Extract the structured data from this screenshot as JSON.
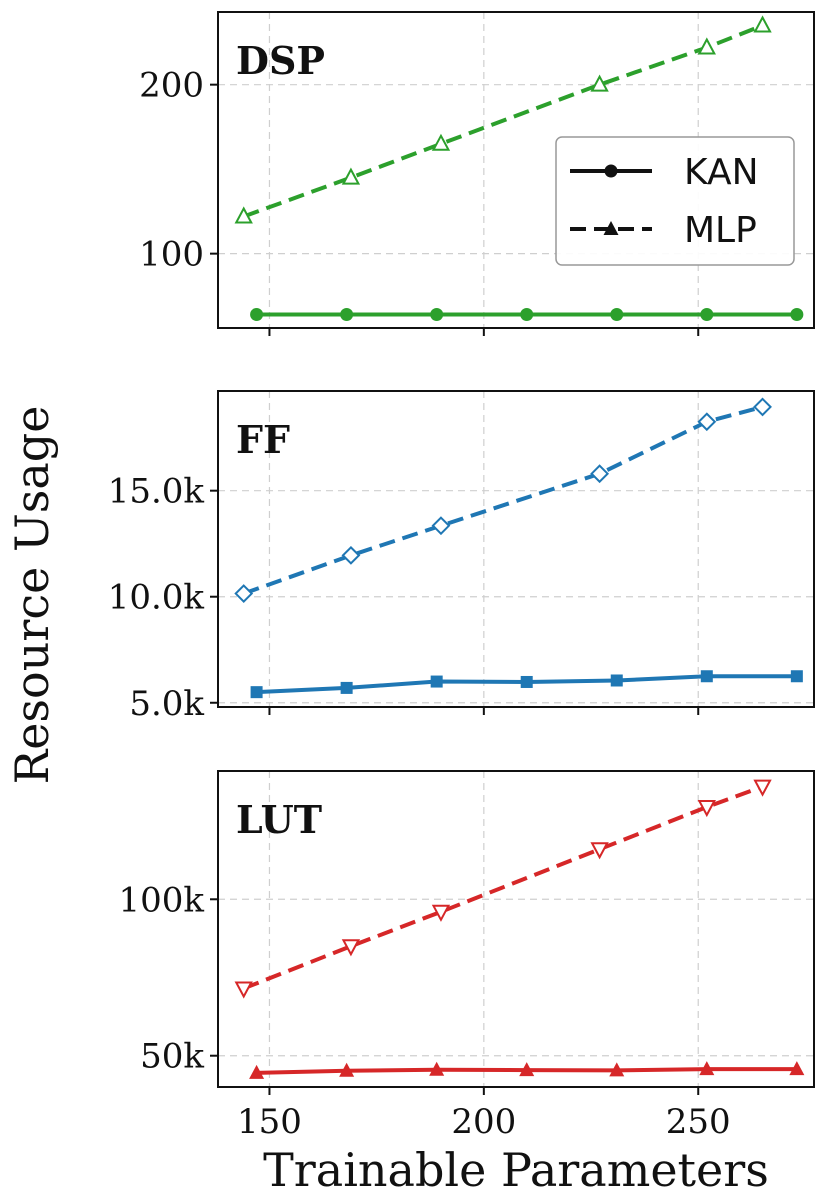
{
  "chart_data": [
    {
      "type": "line",
      "title": "DSP",
      "xlabel": "Trainable Parameters",
      "ylabel": "Resource Usage",
      "xlim": [
        138,
        277
      ],
      "ylim": [
        56,
        243
      ],
      "xticks": [
        150,
        200,
        250
      ],
      "yticks": [
        100,
        200
      ],
      "ytick_labels": [
        "100",
        "200"
      ],
      "grid": true,
      "color": "#2ca02c",
      "legend": {
        "location": "right",
        "entries": [
          {
            "label": "KAN",
            "style": "solid-circle"
          },
          {
            "label": "MLP",
            "style": "dashed-triangle"
          }
        ]
      },
      "series": [
        {
          "name": "KAN",
          "marker": "circle-filled",
          "linestyle": "solid",
          "x": [
            147,
            168,
            189,
            210,
            231,
            252,
            273
          ],
          "y": [
            64,
            64,
            64,
            64,
            64,
            64,
            64
          ]
        },
        {
          "name": "MLP",
          "marker": "triangle-up-open",
          "linestyle": "dashed",
          "x": [
            144,
            169,
            190,
            227,
            252,
            265
          ],
          "y": [
            122,
            145,
            165,
            200,
            222,
            235
          ]
        }
      ]
    },
    {
      "type": "line",
      "title": "FF",
      "xlabel": "Trainable Parameters",
      "ylabel": "Resource Usage",
      "xlim": [
        138,
        277
      ],
      "ylim": [
        4800,
        19700
      ],
      "xticks": [
        150,
        200,
        250
      ],
      "yticks": [
        5000,
        10000,
        15000
      ],
      "ytick_labels": [
        "5.0k",
        "10.0k",
        "15.0k"
      ],
      "grid": true,
      "color": "#1f77b4",
      "series": [
        {
          "name": "KAN",
          "marker": "square-filled",
          "linestyle": "solid",
          "x": [
            147,
            168,
            189,
            210,
            231,
            252,
            273
          ],
          "y": [
            5500,
            5700,
            6000,
            5980,
            6050,
            6250,
            6250
          ]
        },
        {
          "name": "MLP",
          "marker": "diamond-open",
          "linestyle": "dashed",
          "x": [
            144,
            169,
            190,
            227,
            252,
            265
          ],
          "y": [
            10150,
            11950,
            13350,
            15800,
            18250,
            18950
          ]
        }
      ]
    },
    {
      "type": "line",
      "title": "LUT",
      "xlabel": "Trainable Parameters",
      "ylabel": "Resource Usage",
      "xlim": [
        138,
        277
      ],
      "ylim": [
        40000,
        141000
      ],
      "xticks": [
        150,
        200,
        250
      ],
      "yticks": [
        50000,
        100000
      ],
      "ytick_labels": [
        "50k",
        "100k"
      ],
      "xtick_labels": [
        "150",
        "200",
        "250"
      ],
      "grid": true,
      "color": "#d62728",
      "series": [
        {
          "name": "KAN",
          "marker": "triangle-up-filled",
          "linestyle": "solid",
          "x": [
            147,
            168,
            189,
            210,
            231,
            252,
            273
          ],
          "y": [
            44500,
            45200,
            45500,
            45400,
            45300,
            45700,
            45700
          ]
        },
        {
          "name": "MLP",
          "marker": "triangle-down-open",
          "linestyle": "dashed",
          "x": [
            144,
            169,
            190,
            227,
            252,
            265
          ],
          "y": [
            71500,
            85000,
            96000,
            116000,
            129500,
            136000
          ]
        }
      ]
    }
  ],
  "figure": {
    "xlabel": "Trainable Parameters",
    "ylabel": "Resource Usage"
  }
}
